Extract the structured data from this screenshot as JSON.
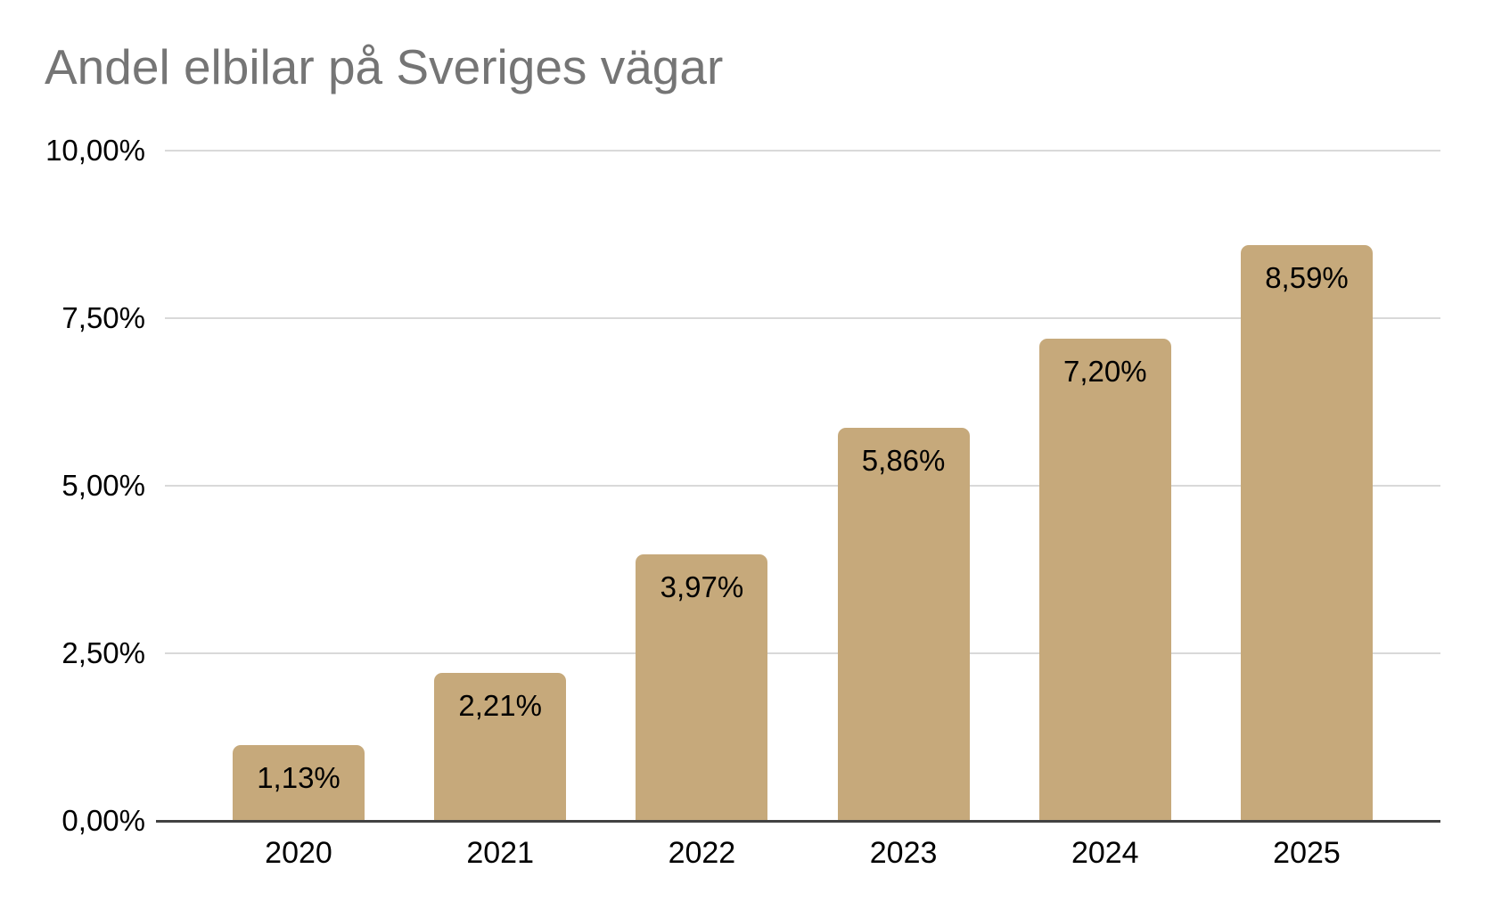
{
  "title": "Andel elbilar på Sveriges vägar",
  "colors": {
    "bar_fill": "#c6a97b",
    "title_text": "#757575",
    "axis_line": "#424242",
    "gridline": "#d9d9d9",
    "label_text": "#000000",
    "background": "#ffffff"
  },
  "chart_data": {
    "type": "bar",
    "title": "Andel elbilar på Sveriges vägar",
    "xlabel": "",
    "ylabel": "",
    "categories": [
      "2020",
      "2021",
      "2022",
      "2023",
      "2024",
      "2025"
    ],
    "values": [
      1.13,
      2.21,
      3.97,
      5.86,
      7.2,
      8.59
    ],
    "value_labels": [
      "1,13%",
      "2,21%",
      "3,97%",
      "5,86%",
      "7,20%",
      "8,59%"
    ],
    "series": [
      {
        "name": "Andel elbilar",
        "values": [
          1.13,
          2.21,
          3.97,
          5.86,
          7.2,
          8.59
        ]
      }
    ],
    "ylim": [
      0,
      10
    ],
    "yticks": [
      {
        "value": 0,
        "label": "0,00%"
      },
      {
        "value": 2.5,
        "label": "2,50%"
      },
      {
        "value": 5,
        "label": "5,00%"
      },
      {
        "value": 7.5,
        "label": "7,50%"
      },
      {
        "value": 10,
        "label": "10,00%"
      }
    ],
    "grid": true,
    "legend_position": "none",
    "value_labels_position": "inside-top"
  }
}
